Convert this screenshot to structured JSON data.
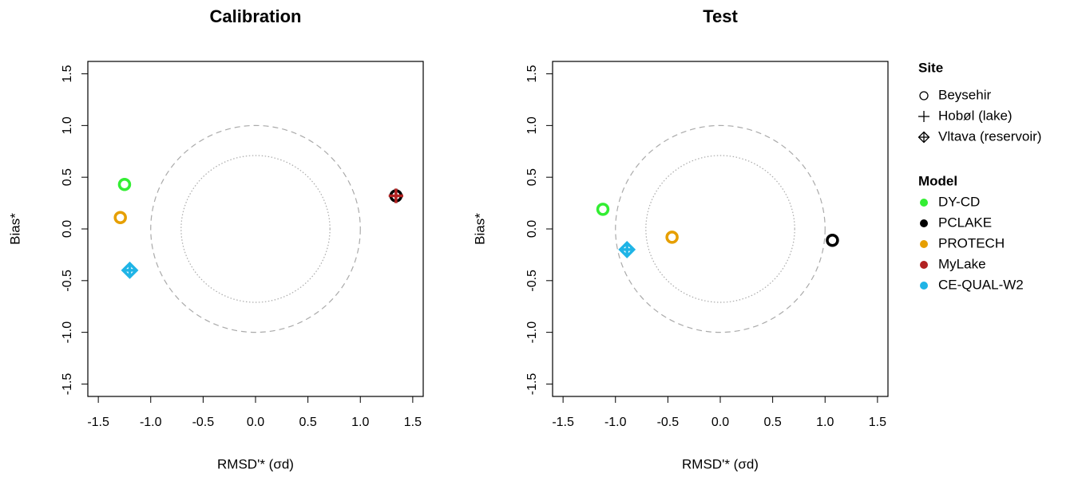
{
  "chart_data": [
    {
      "type": "scatter",
      "title": "Calibration",
      "x_label": "RMSD'* (σd)",
      "y_label": "Bias*",
      "xlim": [
        -1.6,
        1.6
      ],
      "ylim": [
        -1.62,
        1.62
      ],
      "xticks": [
        {
          "value": -1.5,
          "label": "-1.5"
        },
        {
          "value": -1,
          "label": "-1.0"
        },
        {
          "value": -0.5,
          "label": "-0.5"
        },
        {
          "value": 0,
          "label": "0.0"
        },
        {
          "value": 0.5,
          "label": "0.5"
        },
        {
          "value": 1,
          "label": "1.0"
        },
        {
          "value": 1.5,
          "label": "1.5"
        }
      ],
      "yticks": [
        {
          "value": -1.5,
          "label": "-1.5"
        },
        {
          "value": -1,
          "label": "-1.0"
        },
        {
          "value": -0.5,
          "label": "-0.5"
        },
        {
          "value": 0,
          "label": "0.0"
        },
        {
          "value": 0.5,
          "label": "0.5"
        },
        {
          "value": 1,
          "label": "1.0"
        },
        {
          "value": 1.5,
          "label": "1.5"
        }
      ],
      "ref_circles": [
        {
          "r": 1,
          "style": "dashed"
        },
        {
          "r": 0.71,
          "style": "dotted"
        }
      ],
      "points": [
        {
          "model": 0,
          "site": 0,
          "x": -1.25,
          "y": 0.43
        },
        {
          "model": 2,
          "site": 0,
          "x": -1.29,
          "y": 0.11
        },
        {
          "model": 4,
          "site": 2,
          "x": -1.2,
          "y": -0.4
        },
        {
          "model": 1,
          "site": 0,
          "x": 1.34,
          "y": 0.32
        },
        {
          "model": 3,
          "site": 1,
          "x": 1.34,
          "y": 0.32
        }
      ]
    },
    {
      "type": "scatter",
      "title": "Test",
      "x_label": "RMSD'* (σd)",
      "y_label": "Bias*",
      "xlim": [
        -1.6,
        1.6
      ],
      "ylim": [
        -1.62,
        1.62
      ],
      "xticks": [
        {
          "value": -1.5,
          "label": "-1.5"
        },
        {
          "value": -1,
          "label": "-1.0"
        },
        {
          "value": -0.5,
          "label": "-0.5"
        },
        {
          "value": 0,
          "label": "0.0"
        },
        {
          "value": 0.5,
          "label": "0.5"
        },
        {
          "value": 1,
          "label": "1.0"
        },
        {
          "value": 1.5,
          "label": "1.5"
        }
      ],
      "yticks": [
        {
          "value": -1.5,
          "label": "-1.5"
        },
        {
          "value": -1,
          "label": "-1.0"
        },
        {
          "value": -0.5,
          "label": "-0.5"
        },
        {
          "value": 0,
          "label": "0.0"
        },
        {
          "value": 0.5,
          "label": "0.5"
        },
        {
          "value": 1,
          "label": "1.0"
        },
        {
          "value": 1.5,
          "label": "1.5"
        }
      ],
      "ref_circles": [
        {
          "r": 1,
          "style": "dashed"
        },
        {
          "r": 0.71,
          "style": "dotted"
        }
      ],
      "points": [
        {
          "model": 0,
          "site": 0,
          "x": -1.12,
          "y": 0.19
        },
        {
          "model": 2,
          "site": 0,
          "x": -0.46,
          "y": -0.08
        },
        {
          "model": 4,
          "site": 2,
          "x": -0.89,
          "y": -0.2
        },
        {
          "model": 1,
          "site": 0,
          "x": 1.07,
          "y": -0.11
        }
      ]
    }
  ],
  "legend": {
    "site_title": "Site",
    "sites": [
      {
        "name": "Beysehir",
        "marker": "circle"
      },
      {
        "name": "Hobøl (lake)",
        "marker": "plus"
      },
      {
        "name": "Vltava (reservoir)",
        "marker": "diamond-plus"
      }
    ],
    "model_title": "Model",
    "models": [
      {
        "name": "DY-CD",
        "color": "#33ee33"
      },
      {
        "name": "PCLAKE",
        "color": "#000000"
      },
      {
        "name": "PROTECH",
        "color": "#e69f00"
      },
      {
        "name": "MyLake",
        "color": "#b22222"
      },
      {
        "name": "CE-QUAL-W2",
        "color": "#1fb4e6"
      }
    ]
  }
}
